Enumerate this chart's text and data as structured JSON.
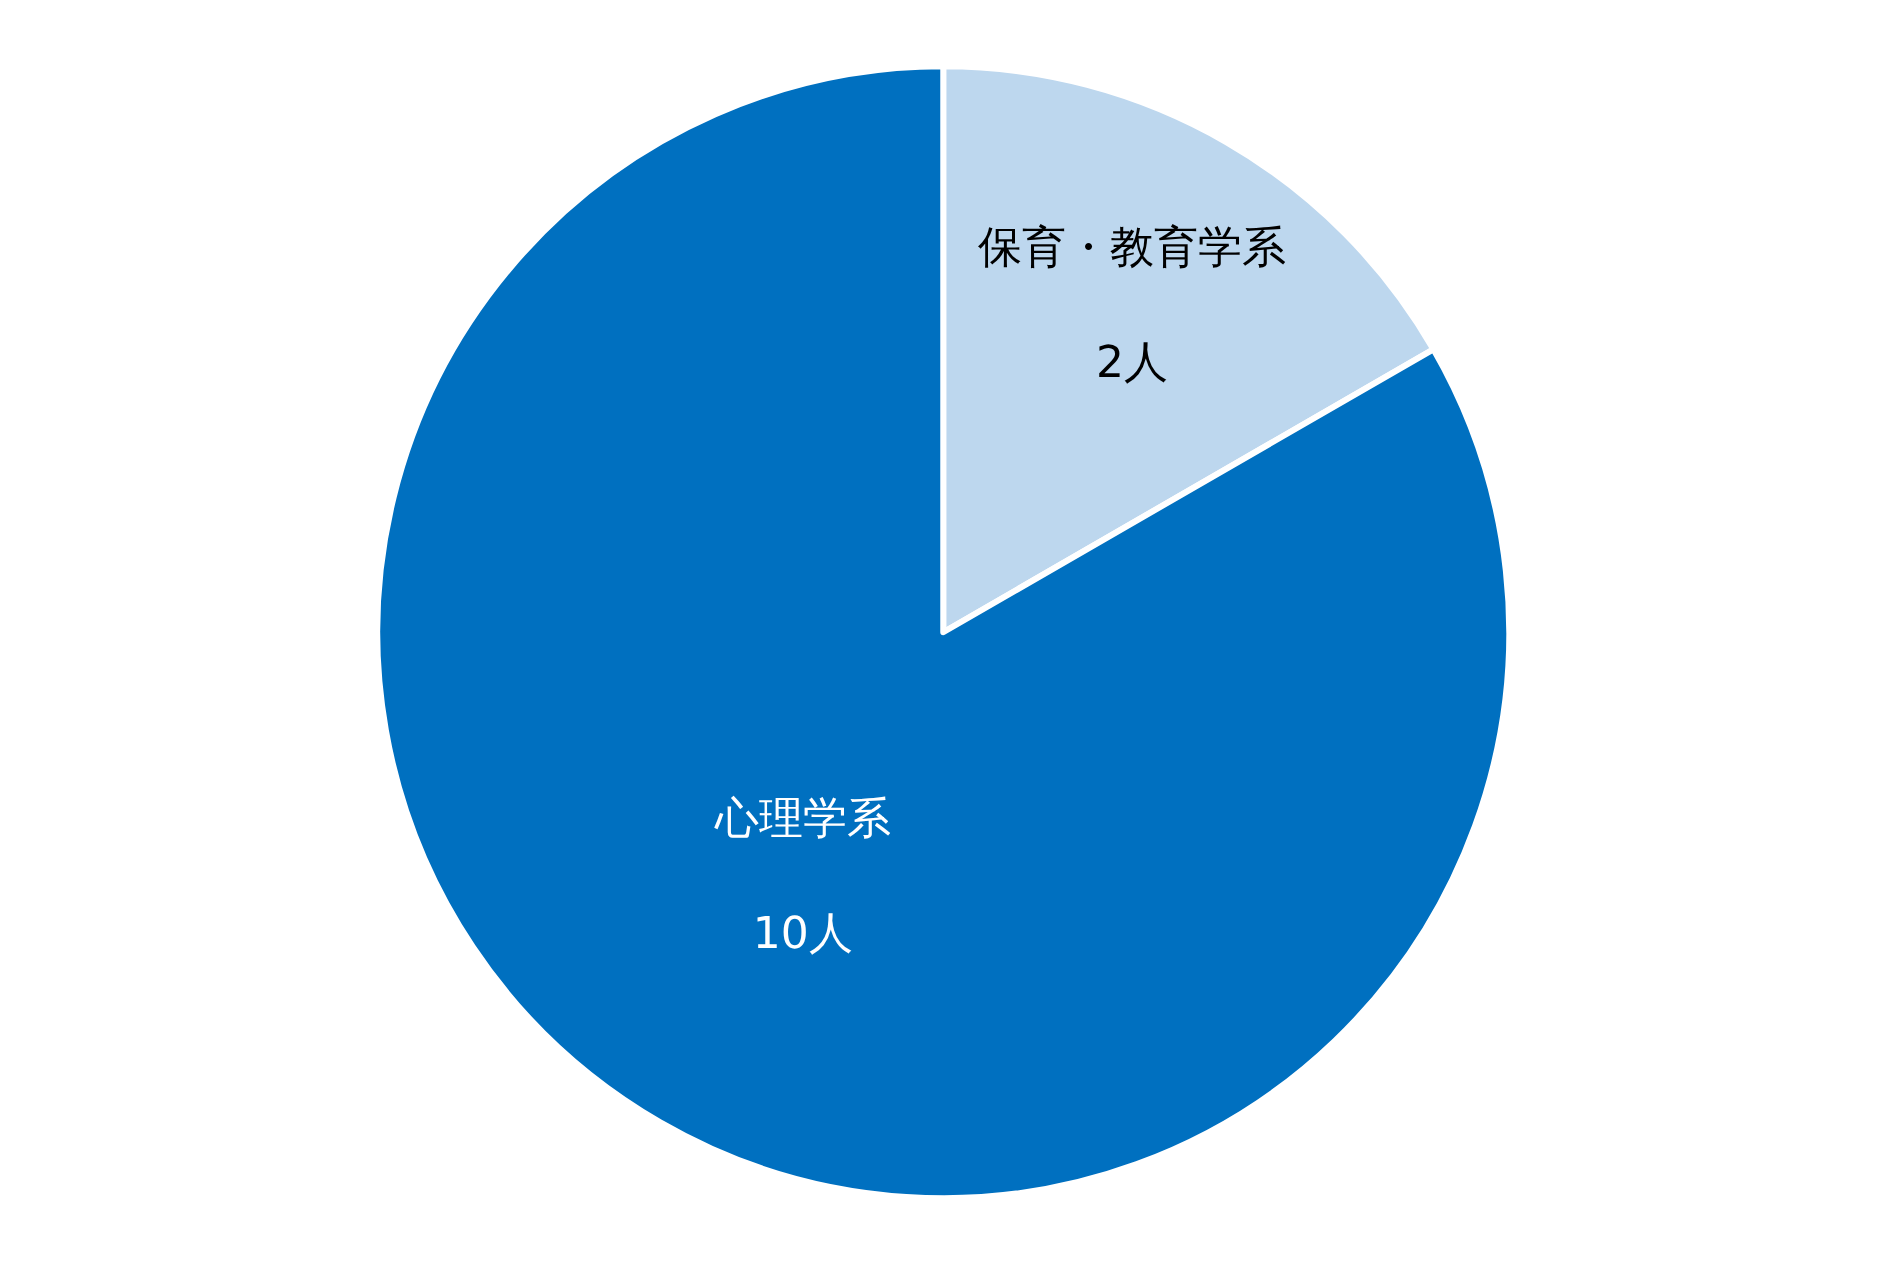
{
  "chart_data": {
    "type": "pie",
    "categories": [
      "保育・教育学系",
      "心理学系"
    ],
    "values": [
      2,
      10
    ],
    "value_labels": [
      "2人",
      "10人"
    ],
    "colors": [
      "#bdd7ee",
      "#0070c0"
    ]
  }
}
